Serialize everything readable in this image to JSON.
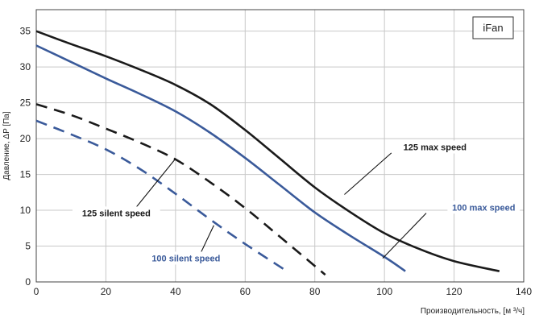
{
  "chart_data": {
    "type": "line",
    "xlabel": "Производительность, [м ³/ч]",
    "ylabel": "Давление, ΔP [Па]",
    "xlim": [
      0,
      140
    ],
    "ylim": [
      0,
      38
    ],
    "xticks": [
      0,
      20,
      40,
      60,
      80,
      100,
      120,
      140
    ],
    "yticks": [
      0,
      5,
      10,
      15,
      20,
      25,
      30,
      35
    ],
    "xtick_labels": [
      "0",
      "20",
      "40",
      "60",
      "80",
      "100",
      "120",
      "140"
    ],
    "ytick_labels": [
      "0",
      "5",
      "10",
      "15",
      "20",
      "25",
      "30",
      "35"
    ],
    "grid": true,
    "legend_box": "iFan",
    "series": [
      {
        "name": "125 max speed",
        "color": "#1a1a1a",
        "dash": "solid",
        "x": [
          0,
          10,
          20,
          30,
          40,
          50,
          60,
          70,
          80,
          90,
          100,
          110,
          120,
          133
        ],
        "y": [
          35,
          33.2,
          31.5,
          29.6,
          27.5,
          24.8,
          21.2,
          17.2,
          13.2,
          9.8,
          6.8,
          4.6,
          2.9,
          1.5
        ]
      },
      {
        "name": "100 max speed",
        "color": "#3a5a9a",
        "dash": "solid",
        "x": [
          0,
          10,
          20,
          30,
          40,
          50,
          60,
          70,
          80,
          90,
          100,
          106
        ],
        "y": [
          33,
          30.7,
          28.4,
          26.2,
          23.8,
          20.8,
          17.3,
          13.5,
          9.7,
          6.5,
          3.5,
          1.5
        ]
      },
      {
        "name": "125 silent speed",
        "color": "#1a1a1a",
        "dash": "dashed",
        "x": [
          0,
          10,
          20,
          30,
          40,
          50,
          60,
          70,
          83
        ],
        "y": [
          24.8,
          23.3,
          21.4,
          19.4,
          17.1,
          13.9,
          10.3,
          6.3,
          1.0
        ]
      },
      {
        "name": "100 silent speed",
        "color": "#3a5a9a",
        "dash": "dashed",
        "x": [
          0,
          10,
          20,
          30,
          40,
          50,
          60,
          72
        ],
        "y": [
          22.5,
          20.6,
          18.5,
          15.7,
          12.3,
          8.7,
          5.3,
          1.5
        ]
      }
    ],
    "annotations": [
      {
        "text": "125 max speed",
        "color": "#1a1a1a",
        "text_at": [
          114.5,
          18.6
        ],
        "point_at": [
          88.5,
          12.2
        ],
        "from": [
          102.0,
          18.0
        ]
      },
      {
        "text": "100 max speed",
        "color": "#3a5a9a",
        "text_at": [
          128.5,
          10.2
        ],
        "point_at": [
          99.5,
          3.3
        ],
        "from": [
          112.0,
          9.6
        ]
      },
      {
        "text": "125 silent speed",
        "color": "#1a1a1a",
        "text_at": [
          23.0,
          9.4
        ],
        "point_at": [
          40.0,
          17.2
        ],
        "from": [
          28.0,
          10.0
        ]
      },
      {
        "text": "100 silent speed",
        "color": "#3a5a9a",
        "text_at": [
          43.0,
          3.1
        ],
        "point_at": [
          51.0,
          7.9
        ],
        "from": [
          47.0,
          3.8
        ]
      }
    ]
  }
}
